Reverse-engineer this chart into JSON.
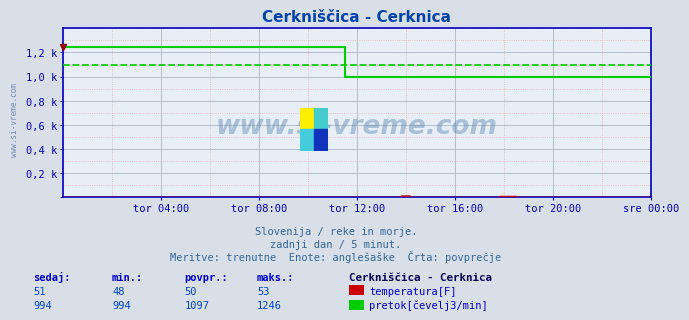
{
  "title": "Cerkniščica - Cerknica",
  "bg_outer": "#d8dfe8",
  "bg_plot": "#e8eef5",
  "grid_major_color": "#aabbcc",
  "grid_minor_color": "#f0aaaa",
  "axis_color": "#0000bb",
  "title_color": "#0044aa",
  "watermark_text": "www.si-vreme.com",
  "watermark_color": "#4477aa",
  "watermark_alpha": 0.38,
  "sidebar_text": "www.si-vreme.com",
  "sidebar_color": "#5577aa",
  "xlim": [
    0,
    24
  ],
  "ylim": [
    0,
    1400
  ],
  "yticks": [
    0,
    200,
    400,
    600,
    800,
    1000,
    1200
  ],
  "ytick_labels": [
    "",
    "0,2 k",
    "0,4 k",
    "0,6 k",
    "0,8 k",
    "1,0 k",
    "1,2 k"
  ],
  "xtick_positions": [
    4,
    8,
    12,
    16,
    20,
    24
  ],
  "xtick_labels": [
    "tor 04:00",
    "tor 08:00",
    "tor 12:00",
    "tor 16:00",
    "tor 20:00",
    "sre 00:00"
  ],
  "temp_color": "#cc0000",
  "flow_color": "#00cc00",
  "avg_flow_color": "#00cc00",
  "avg_flow_value": 1097,
  "flow_step_x": 11.5,
  "flow_high": 1246,
  "flow_low": 994,
  "flow_min": 994,
  "flow_max": 1246,
  "flow_avg": 1097,
  "temp_min": 48,
  "temp_max": 53,
  "temp_avg": 50,
  "temp_now": 51,
  "flow_now": 994,
  "legend_title": "Cerkniščica - Cerknica",
  "legend_temp": "temperatura[F]",
  "legend_flow": "pretok[čevelj3/min]",
  "footer_line1": "Slovenija / reke in morje.",
  "footer_line2": "zadnji dan / 5 minut.",
  "footer_line3": "Meritve: trenutne  Enote: anglešaške  Črta: povprečje",
  "table_headers": [
    "sedaj:",
    "min.:",
    "povpr.:",
    "maks.:"
  ],
  "table_temp": [
    51,
    48,
    50,
    53
  ],
  "table_flow": [
    994,
    994,
    1097,
    1246
  ]
}
